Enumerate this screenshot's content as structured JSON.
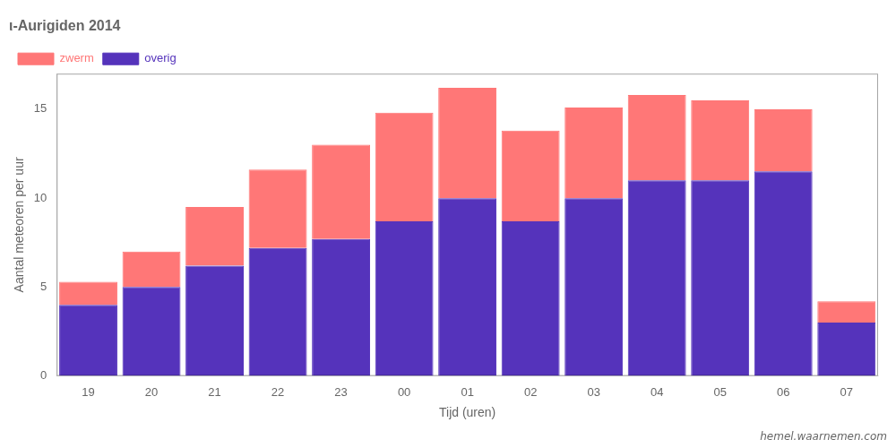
{
  "chart_data": {
    "type": "bar",
    "stacked": true,
    "title": "ι-Aurigiden 2014",
    "xlabel": "Tijd (uren)",
    "ylabel": "Aantal meteoren per uur",
    "annotations": [
      "hemel.waarnemen.com"
    ],
    "categories": [
      "19",
      "20",
      "21",
      "22",
      "23",
      "00",
      "01",
      "02",
      "03",
      "04",
      "05",
      "06",
      "07"
    ],
    "series": [
      {
        "name": "overig",
        "color": "#5533bb",
        "values": [
          4.0,
          5.0,
          6.2,
          7.2,
          7.7,
          8.7,
          10.0,
          8.7,
          10.0,
          11.0,
          11.0,
          11.5,
          3.0
        ]
      },
      {
        "name": "zwerm",
        "color": "#ff7777",
        "values": [
          1.3,
          2.0,
          3.3,
          4.4,
          5.3,
          6.1,
          6.2,
          5.1,
          5.1,
          4.8,
          4.5,
          3.5,
          1.2
        ]
      }
    ],
    "ylim": [
      0,
      17
    ],
    "yticks": [
      0,
      5,
      10,
      15
    ],
    "grid": false,
    "legend": "upper left"
  }
}
